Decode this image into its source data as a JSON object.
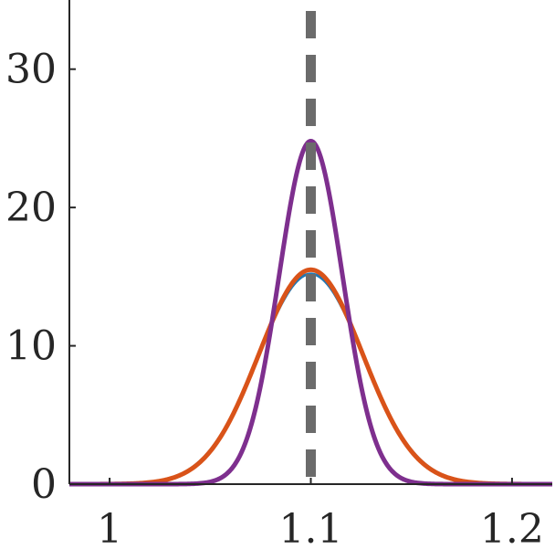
{
  "chart_data": {
    "type": "line",
    "title": "",
    "xlabel": "",
    "ylabel": "",
    "xlim": [
      0.98,
      1.22
    ],
    "ylim": [
      0,
      35
    ],
    "xticks": [
      1,
      1.1,
      1.2
    ],
    "xtick_labels": [
      "1",
      "1.1",
      "1.2"
    ],
    "yticks": [
      0,
      10,
      20,
      30
    ],
    "ytick_labels": [
      "0",
      "10",
      "20",
      "30"
    ],
    "grid": false,
    "legend": "none",
    "reference_line": {
      "x": 1.1,
      "style": "dashed",
      "color": "#6b6b6b"
    },
    "series": [
      {
        "type": "gaussian",
        "mean": 1.1,
        "sigma": 0.0262,
        "peak": 15.2,
        "color": "#1f77b4"
      },
      {
        "type": "gaussian",
        "mean": 1.1,
        "sigma": 0.0258,
        "peak": 15.5,
        "color": "#d95319"
      },
      {
        "type": "gaussian",
        "mean": 1.1,
        "sigma": 0.0158,
        "peak": 24.8,
        "color": "#7e2f8e"
      }
    ]
  }
}
